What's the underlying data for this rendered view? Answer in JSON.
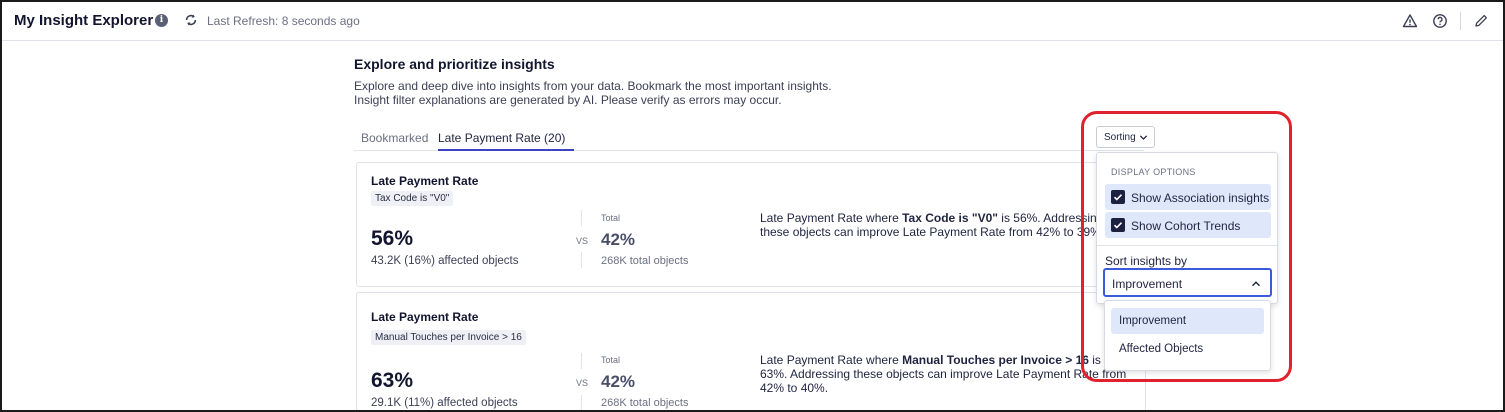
{
  "app": {
    "title": "My Insight Explorer",
    "last_refresh": "Last Refresh: 8 seconds ago"
  },
  "header": {
    "title": "Explore and prioritize insights",
    "description_line1": "Explore and deep dive into insights from your data. Bookmark the most important insights.",
    "description_line2": "Insight filter explanations are generated by AI. Please verify as errors may occur."
  },
  "tabs": [
    {
      "label": "Bookmarked",
      "active": false
    },
    {
      "label": "Late Payment Rate (20)",
      "active": true
    }
  ],
  "cards": [
    {
      "metric": "Late Payment Rate",
      "filter": "Tax Code is \"V0\"",
      "value": "56%",
      "affected": "43.2K (16%) affected objects",
      "vs": "VS",
      "total_label": "Total",
      "total_value": "42%",
      "total_objects": "268K total objects",
      "explain_pre": "Late Payment Rate where ",
      "explain_bold": "Tax Code is \"V0\"",
      "explain_post": " is 56%. Addressing these objects can improve Late Payment Rate from 42% to 39%."
    },
    {
      "metric": "Late Payment Rate",
      "filter": "Manual Touches per Invoice > 16",
      "value": "63%",
      "affected": "29.1K (11%) affected objects",
      "vs": "VS",
      "total_label": "Total",
      "total_value": "42%",
      "total_objects": "268K total objects",
      "explain_pre": "Late Payment Rate where ",
      "explain_bold": "Manual Touches per Invoice > 16",
      "explain_post": " is 63%. Addressing these objects can improve Late Payment Rate from 42% to 40%."
    }
  ],
  "sorting": {
    "button_label": "Sorting",
    "display_options_heading": "DISPLAY OPTIONS",
    "options": [
      {
        "label": "Show Association insights",
        "checked": true
      },
      {
        "label": "Show Cohort Trends",
        "checked": true
      }
    ],
    "sort_by_label": "Sort insights by",
    "selected": "Improvement",
    "menu_items": [
      "Improvement",
      "Affected Objects"
    ]
  },
  "icons": {
    "info": "info-icon",
    "refresh": "refresh-icon",
    "warning": "warning-icon",
    "help": "help-icon",
    "edit": "pencil-icon"
  },
  "colors": {
    "accent": "#3b44c4",
    "focus_border": "#3b5bdb",
    "selected_bg": "#dfe8fb",
    "highlight": "#e0222e"
  }
}
